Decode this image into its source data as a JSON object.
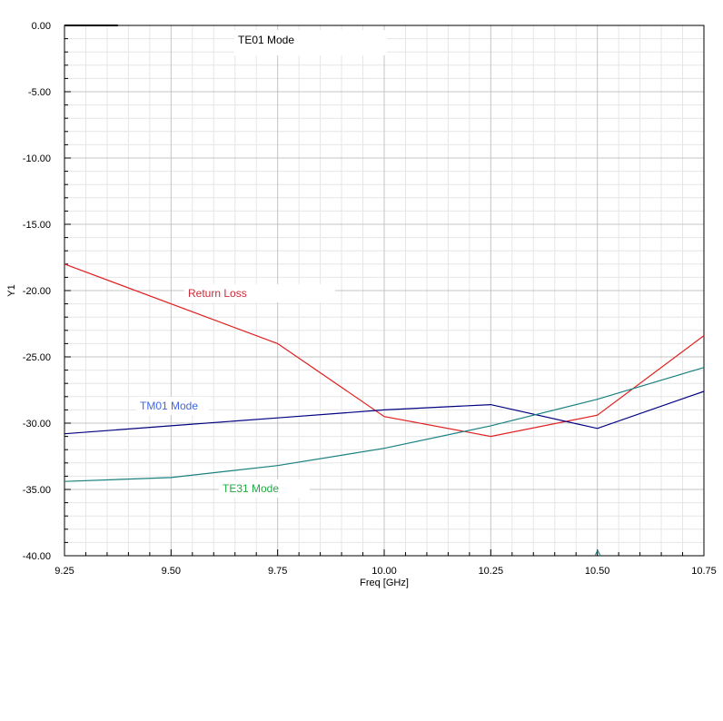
{
  "chart_data": {
    "type": "line",
    "xlabel": "Freq [GHz]",
    "ylabel": "Y1",
    "xlim": [
      9.25,
      10.75
    ],
    "ylim": [
      -40,
      0
    ],
    "x_ticks": [
      "9.25",
      "9.50",
      "9.75",
      "10.00",
      "10.25",
      "10.50",
      "10.75"
    ],
    "y_ticks": [
      "0.00",
      "-5.00",
      "-10.00",
      "-15.00",
      "-20.00",
      "-25.00",
      "-30.00",
      "-35.00",
      "-40.00"
    ],
    "grid": true,
    "annotations": [
      {
        "text": "TE01 Mode",
        "color": "#000000"
      },
      {
        "text": "Return Loss",
        "color": "#cc2a36"
      },
      {
        "text": "TM01 Mode",
        "color": "#4466dd"
      },
      {
        "text": "TE31 Mode",
        "color": "#22aa44"
      }
    ],
    "series": [
      {
        "name": "Return Loss",
        "color": "#e02020",
        "x": [
          9.25,
          9.75,
          10.0,
          10.25,
          10.5,
          10.75
        ],
        "y": [
          -18.0,
          -24.0,
          -29.5,
          -31.0,
          -29.4,
          -23.4
        ]
      },
      {
        "name": "TM01 Mode",
        "color": "#000080",
        "x": [
          9.25,
          9.5,
          9.75,
          10.0,
          10.25,
          10.5,
          10.75
        ],
        "y": [
          -30.8,
          -30.2,
          -29.6,
          -29.0,
          -28.6,
          -30.4,
          -27.6
        ]
      },
      {
        "name": "TE31 Mode",
        "color": "#1a8080",
        "x": [
          9.25,
          9.5,
          9.75,
          10.0,
          10.25,
          10.5,
          10.75
        ],
        "y": [
          -34.4,
          -34.1,
          -33.2,
          -31.9,
          -30.2,
          -28.2,
          -25.8
        ]
      },
      {
        "name": "TE01 Mode",
        "color": "#000000",
        "x": [
          9.25,
          9.375
        ],
        "y": [
          0.0,
          0.0
        ]
      }
    ]
  }
}
